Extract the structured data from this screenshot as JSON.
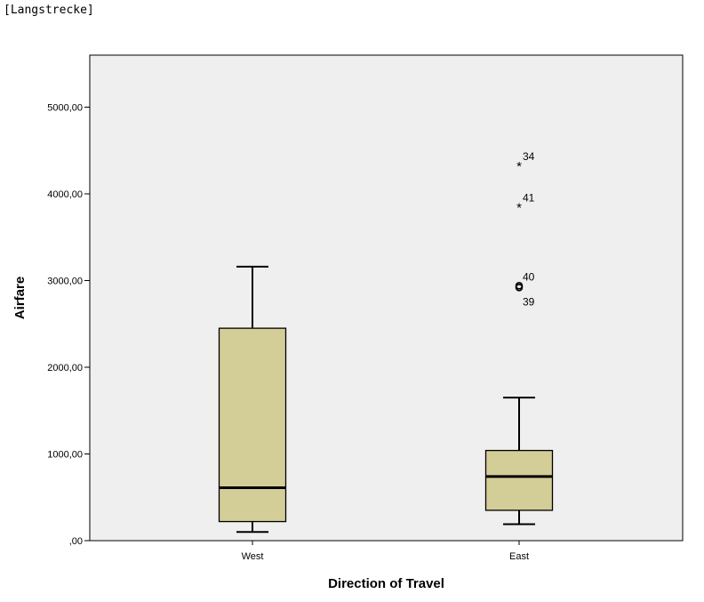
{
  "dataset_label": "[Langstrecke]",
  "colors": {
    "box_fill": "#d3cd98",
    "plot_background": "#efefef",
    "stroke": "#000000"
  },
  "chart_data": {
    "type": "boxplot",
    "xlabel": "Direction of Travel",
    "ylabel": "Airfare",
    "ylim": [
      0,
      5600
    ],
    "yticks": [
      0,
      1000,
      2000,
      3000,
      4000,
      5000
    ],
    "ytick_labels": [
      ",00",
      "1000,00",
      "2000,00",
      "3000,00",
      "4000,00",
      "5000,00"
    ],
    "categories": [
      "West",
      "East"
    ],
    "boxes": [
      {
        "category": "West",
        "whisker_low": 100,
        "q1": 220,
        "median": 610,
        "q3": 2450,
        "whisker_high": 3160,
        "outliers": []
      },
      {
        "category": "East",
        "whisker_low": 190,
        "q1": 350,
        "median": 740,
        "q3": 1040,
        "whisker_high": 1650,
        "outliers": [
          {
            "value": 4330,
            "marker": "star",
            "label": "34"
          },
          {
            "value": 3850,
            "marker": "star",
            "label": "41"
          },
          {
            "value": 2940,
            "marker": "circle",
            "label": "40"
          },
          {
            "value": 2920,
            "marker": "circle",
            "label": "39"
          }
        ]
      }
    ]
  }
}
